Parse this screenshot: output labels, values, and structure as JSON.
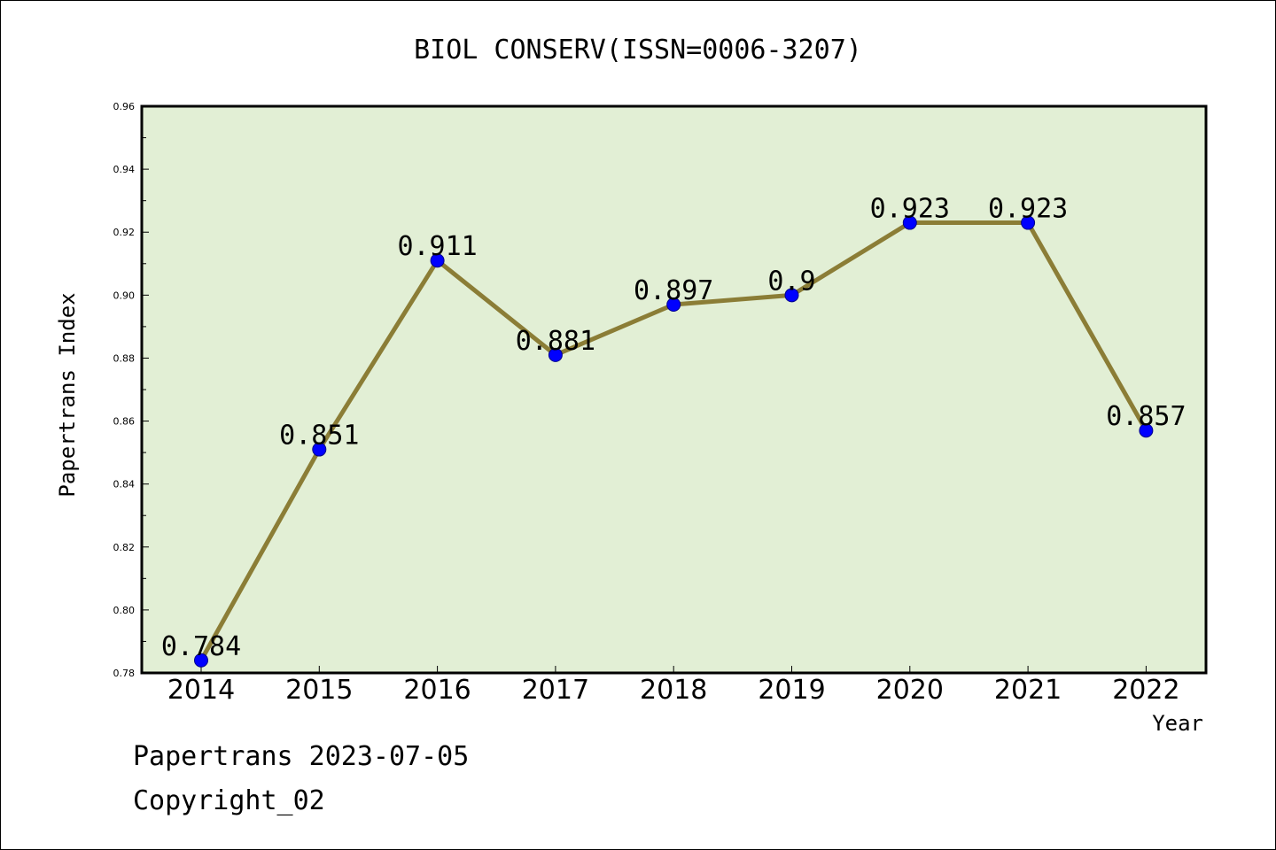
{
  "chart_data": {
    "type": "line",
    "title": "BIOL CONSERV(ISSN=0006-3207)",
    "xlabel": "Year",
    "ylabel": "Papertrans Index",
    "categories": [
      "2014",
      "2015",
      "2016",
      "2017",
      "2018",
      "2019",
      "2020",
      "2021",
      "2022"
    ],
    "values": [
      0.784,
      0.851,
      0.911,
      0.881,
      0.897,
      0.9,
      0.923,
      0.923,
      0.857
    ],
    "value_labels": [
      "0.784",
      "0.851",
      "0.911",
      "0.881",
      "0.897",
      "0.9",
      "0.923",
      "0.923",
      "0.857"
    ],
    "ylim": [
      0.78,
      0.96
    ],
    "yticks": [
      "0.78",
      "0.80",
      "0.82",
      "0.84",
      "0.86",
      "0.88",
      "0.90",
      "0.92",
      "0.94",
      "0.96"
    ],
    "grid": false,
    "colors": {
      "plot_background": "#e2efd5",
      "line": "#8b7d36",
      "marker": "#0000ff"
    }
  },
  "footer": {
    "line1": "Papertrans 2023-07-05",
    "line2": "Copyright_02"
  }
}
